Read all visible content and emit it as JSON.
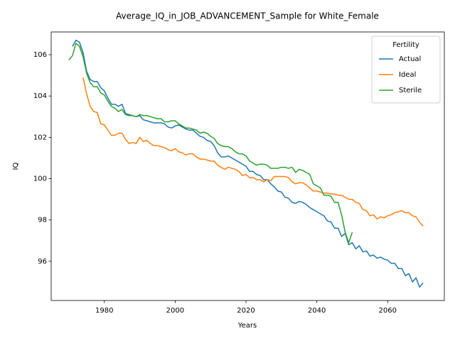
{
  "chart_data": {
    "type": "line",
    "title": "Average_IQ_in_JOB_ADVANCEMENT_Sample for White_Female",
    "x_label": "Years",
    "y_label": "IQ",
    "x": [
      1970,
      1971,
      1972,
      1973,
      1974,
      1975,
      1976,
      1977,
      1978,
      1979,
      1980,
      1981,
      1982,
      1983,
      1984,
      1985,
      1986,
      1987,
      1988,
      1989,
      1990,
      1991,
      1992,
      1993,
      1994,
      1995,
      1996,
      1997,
      1998,
      1999,
      2000,
      2001,
      2002,
      2003,
      2004,
      2005,
      2006,
      2007,
      2008,
      2009,
      2010,
      2011,
      2012,
      2013,
      2014,
      2015,
      2016,
      2017,
      2018,
      2019,
      2020,
      2021,
      2022,
      2023,
      2024,
      2025,
      2026,
      2027,
      2028,
      2029,
      2030,
      2031,
      2032,
      2033,
      2034,
      2035,
      2036,
      2037,
      2038,
      2039,
      2040,
      2041,
      2042,
      2043,
      2044,
      2045,
      2046,
      2047,
      2048,
      2049,
      2050,
      2051,
      2052,
      2053,
      2054,
      2055,
      2056,
      2057,
      2058,
      2059,
      2060,
      2061,
      2062,
      2063,
      2064,
      2065,
      2066,
      2067,
      2068,
      2069,
      2070
    ],
    "series": [
      {
        "name": "Actual",
        "color": "#1f77b4",
        "values": [
          null,
          106.4,
          106.7,
          106.6,
          106.1,
          105.2,
          104.8,
          104.7,
          104.7,
          104.4,
          104.25,
          103.9,
          103.6,
          103.6,
          103.5,
          103.6,
          103.15,
          103.1,
          103.05,
          103.0,
          103.05,
          102.85,
          102.8,
          102.75,
          102.7,
          102.7,
          102.7,
          102.65,
          102.5,
          102.45,
          102.55,
          102.6,
          102.5,
          102.4,
          102.35,
          102.35,
          102.2,
          102.05,
          102.0,
          101.85,
          101.8,
          101.6,
          101.25,
          101.05,
          101.05,
          101.1,
          101.0,
          100.9,
          100.8,
          100.7,
          100.6,
          100.35,
          100.35,
          100.2,
          100.15,
          99.95,
          99.95,
          99.75,
          99.6,
          99.4,
          99.35,
          99.1,
          99.05,
          98.85,
          98.8,
          98.9,
          98.85,
          98.75,
          98.6,
          98.5,
          98.4,
          98.3,
          98.2,
          97.95,
          97.9,
          97.6,
          97.6,
          97.2,
          97.35,
          96.8,
          96.9,
          96.6,
          96.75,
          96.45,
          96.5,
          96.25,
          96.3,
          96.15,
          96.2,
          96.1,
          96.05,
          95.9,
          95.9,
          95.65,
          95.65,
          95.3,
          95.4,
          95.0,
          95.2,
          94.75,
          94.95
        ]
      },
      {
        "name": "Ideal",
        "color": "#ff7f0e",
        "values": [
          null,
          null,
          null,
          null,
          104.9,
          104.1,
          103.5,
          103.25,
          103.2,
          102.65,
          102.6,
          102.35,
          102.1,
          102.1,
          102.2,
          102.2,
          101.9,
          101.7,
          101.75,
          101.7,
          102.0,
          101.8,
          101.85,
          101.7,
          101.6,
          101.6,
          101.55,
          101.5,
          101.4,
          101.35,
          101.45,
          101.3,
          101.25,
          101.15,
          101.2,
          101.2,
          101.05,
          100.95,
          100.95,
          100.9,
          100.85,
          100.85,
          100.65,
          100.55,
          100.45,
          100.55,
          100.5,
          100.45,
          100.35,
          100.15,
          100.2,
          100.05,
          100.05,
          99.95,
          99.95,
          99.85,
          99.95,
          99.9,
          100.1,
          100.1,
          100.1,
          100.1,
          100.05,
          99.85,
          99.75,
          99.8,
          99.8,
          99.7,
          99.55,
          99.4,
          99.4,
          99.35,
          99.3,
          99.3,
          99.25,
          99.25,
          99.2,
          99.2,
          99.1,
          99.0,
          99.0,
          98.85,
          98.8,
          98.5,
          98.45,
          98.2,
          98.25,
          98.05,
          98.15,
          98.1,
          98.2,
          98.25,
          98.35,
          98.4,
          98.45,
          98.35,
          98.35,
          98.2,
          98.15,
          97.9,
          97.7
        ]
      },
      {
        "name": "Sterile",
        "color": "#2ca02c",
        "values": [
          105.75,
          105.95,
          106.55,
          106.4,
          105.9,
          105.1,
          104.65,
          104.45,
          104.45,
          104.15,
          104.05,
          103.75,
          103.5,
          103.4,
          103.25,
          103.35,
          103.1,
          103.05,
          103.05,
          103.0,
          103.1,
          103.05,
          103.05,
          103.0,
          102.95,
          102.9,
          102.9,
          102.75,
          102.75,
          102.8,
          102.8,
          102.65,
          102.55,
          102.45,
          102.45,
          102.4,
          102.35,
          102.2,
          102.25,
          102.2,
          102.05,
          101.95,
          101.7,
          101.6,
          101.55,
          101.55,
          101.45,
          101.3,
          101.2,
          101.2,
          101.1,
          100.85,
          100.75,
          100.65,
          100.7,
          100.7,
          100.65,
          100.5,
          100.5,
          100.5,
          100.55,
          100.55,
          100.5,
          100.55,
          100.3,
          100.45,
          100.4,
          100.3,
          100.2,
          99.75,
          99.65,
          99.55,
          99.2,
          99.2,
          99.15,
          98.85,
          98.85,
          98.25,
          97.4,
          96.9,
          97.4,
          null,
          null,
          null,
          null,
          null,
          null,
          null,
          null,
          null,
          null,
          null,
          null,
          null,
          null,
          null,
          null,
          null,
          null,
          null,
          null
        ]
      }
    ],
    "legend_title": "Fertility",
    "legend": "upper right",
    "xlim": [
      1965,
      2076
    ],
    "ylim": [
      94.1,
      107.1
    ],
    "xticks": [
      1980,
      2000,
      2020,
      2040,
      2060
    ],
    "yticks": [
      96,
      98,
      100,
      102,
      104,
      106
    ]
  }
}
